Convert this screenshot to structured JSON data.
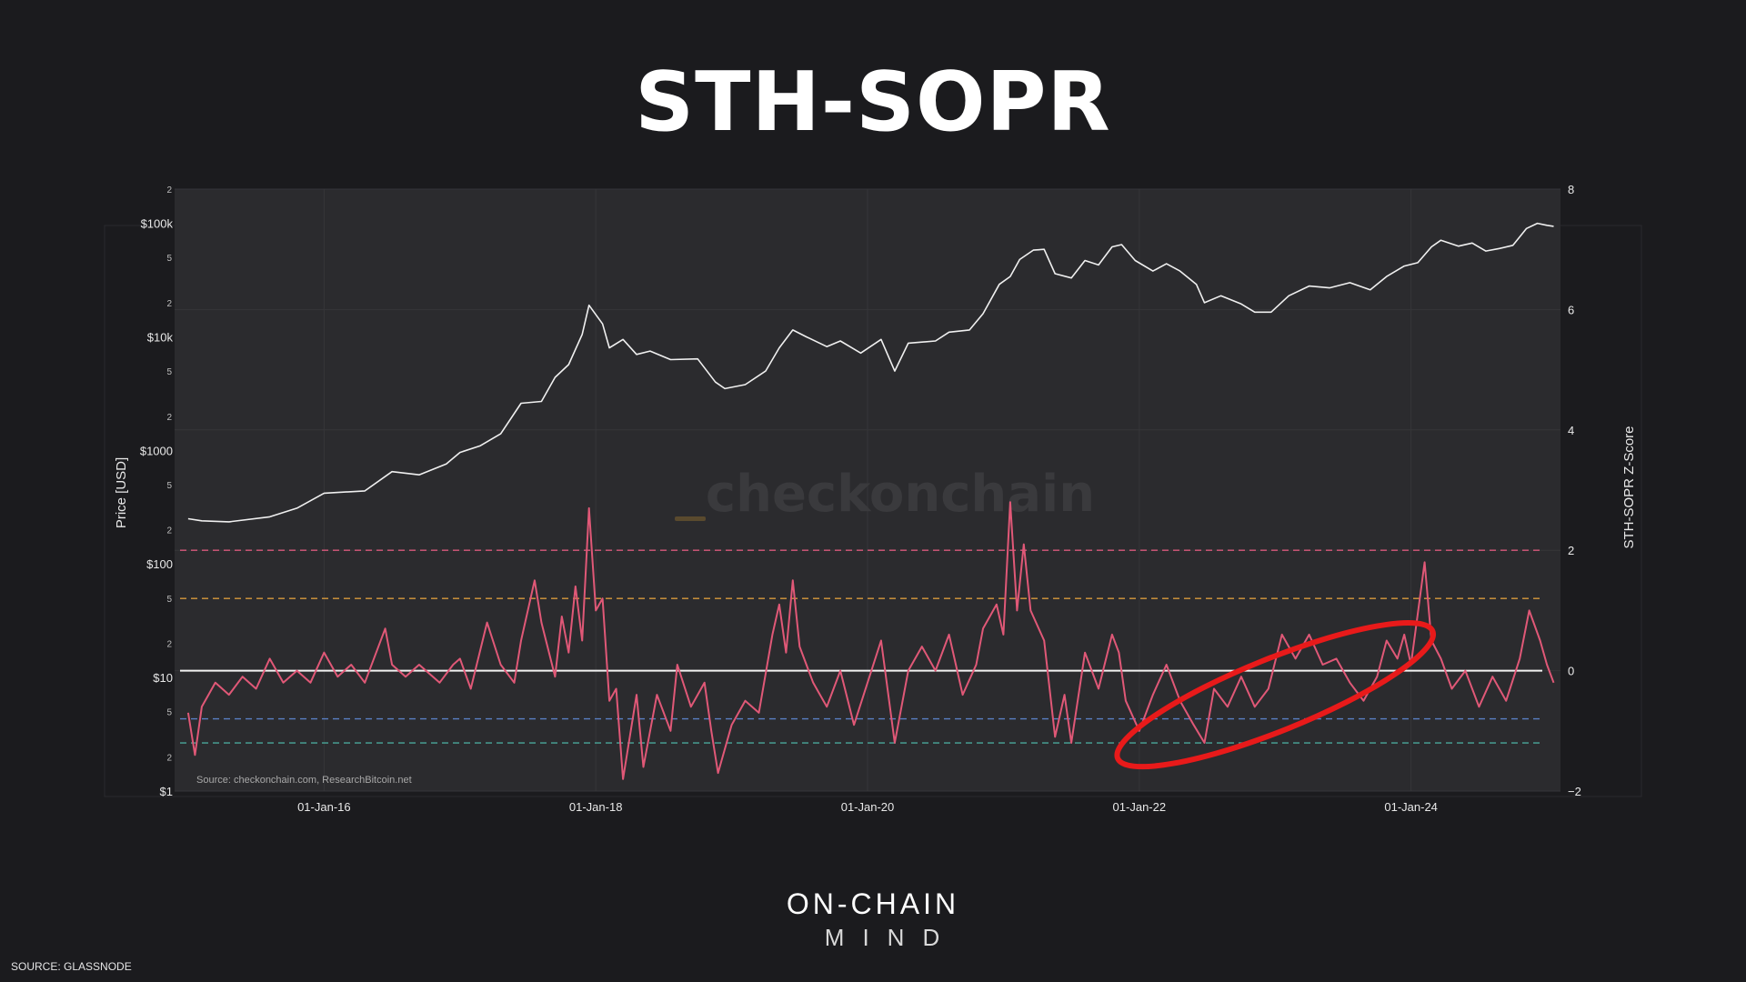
{
  "page": {
    "title": "STH-SOPR",
    "brand_line1": "ON-CHAIN",
    "brand_line2": "MIND",
    "source": "SOURCE: GLASSNODE"
  },
  "chart_data": {
    "type": "line",
    "watermark": "checkonchain",
    "inner_source": "Source: checkonchain.com, ResearchBitcoin.net",
    "left_axis": {
      "label": "Price [USD]",
      "scale": "log",
      "range": [
        1,
        200000
      ],
      "major_ticks": [
        {
          "value": 1,
          "label": "$1"
        },
        {
          "value": 10,
          "label": "$10"
        },
        {
          "value": 100,
          "label": "$100"
        },
        {
          "value": 1000,
          "label": "$1000"
        },
        {
          "value": 10000,
          "label": "$10k"
        },
        {
          "value": 100000,
          "label": "$100k"
        }
      ],
      "minor_ticks": [
        {
          "value": 2,
          "label": "2"
        },
        {
          "value": 5,
          "label": "5"
        },
        {
          "value": 20,
          "label": "2"
        },
        {
          "value": 50,
          "label": "5"
        },
        {
          "value": 200,
          "label": "2"
        },
        {
          "value": 500,
          "label": "5"
        },
        {
          "value": 2000,
          "label": "2"
        },
        {
          "value": 5000,
          "label": "5"
        },
        {
          "value": 20000,
          "label": "2"
        },
        {
          "value": 50000,
          "label": "5"
        },
        {
          "value": 200000,
          "label": "2"
        }
      ]
    },
    "right_axis": {
      "label": "STH-SOPR Z-Score",
      "range": [
        -2,
        8
      ],
      "ticks": [
        {
          "value": -2,
          "label": "−2"
        },
        {
          "value": 0,
          "label": "0"
        },
        {
          "value": 2,
          "label": "2"
        },
        {
          "value": 4,
          "label": "4"
        },
        {
          "value": 6,
          "label": "6"
        },
        {
          "value": 8,
          "label": "8"
        }
      ]
    },
    "x_axis": {
      "range": [
        2014.9,
        2025.1
      ],
      "ticks": [
        {
          "value": 2016,
          "label": "01-Jan-16"
        },
        {
          "value": 2018,
          "label": "01-Jan-18"
        },
        {
          "value": 2020,
          "label": "01-Jan-20"
        },
        {
          "value": 2022,
          "label": "01-Jan-22"
        },
        {
          "value": 2024,
          "label": "01-Jan-24"
        }
      ]
    },
    "reference_lines": [
      {
        "value": 2.0,
        "color": "#d9587c",
        "style": "dashed"
      },
      {
        "value": 1.2,
        "color": "#d89a3c",
        "style": "dashed"
      },
      {
        "value": 0.0,
        "color": "#f2f2f2",
        "style": "solid"
      },
      {
        "value": -0.8,
        "color": "#5a7fc4",
        "style": "dashed"
      },
      {
        "value": -1.2,
        "color": "#4aa89a",
        "style": "dashed"
      }
    ],
    "series": [
      {
        "key": "price",
        "color": "#f0f0f0",
        "axis": "left",
        "points": [
          [
            2015.0,
            250
          ],
          [
            2015.1,
            240
          ],
          [
            2015.3,
            235
          ],
          [
            2015.6,
            260
          ],
          [
            2015.8,
            310
          ],
          [
            2016.0,
            420
          ],
          [
            2016.3,
            440
          ],
          [
            2016.5,
            650
          ],
          [
            2016.7,
            610
          ],
          [
            2016.9,
            760
          ],
          [
            2017.0,
            960
          ],
          [
            2017.15,
            1100
          ],
          [
            2017.3,
            1400
          ],
          [
            2017.45,
            2600
          ],
          [
            2017.6,
            2700
          ],
          [
            2017.7,
            4400
          ],
          [
            2017.8,
            5700
          ],
          [
            2017.9,
            10500
          ],
          [
            2017.95,
            19000
          ],
          [
            2018.05,
            13000
          ],
          [
            2018.1,
            8000
          ],
          [
            2018.2,
            9500
          ],
          [
            2018.3,
            7000
          ],
          [
            2018.4,
            7500
          ],
          [
            2018.55,
            6300
          ],
          [
            2018.75,
            6400
          ],
          [
            2018.88,
            4000
          ],
          [
            2018.95,
            3500
          ],
          [
            2019.1,
            3800
          ],
          [
            2019.25,
            5000
          ],
          [
            2019.35,
            8000
          ],
          [
            2019.45,
            11500
          ],
          [
            2019.55,
            10000
          ],
          [
            2019.7,
            8200
          ],
          [
            2019.8,
            9200
          ],
          [
            2019.95,
            7200
          ],
          [
            2020.1,
            9500
          ],
          [
            2020.2,
            5000
          ],
          [
            2020.3,
            8800
          ],
          [
            2020.5,
            9200
          ],
          [
            2020.6,
            11000
          ],
          [
            2020.75,
            11500
          ],
          [
            2020.85,
            16000
          ],
          [
            2020.97,
            29000
          ],
          [
            2021.05,
            34000
          ],
          [
            2021.12,
            48000
          ],
          [
            2021.22,
            58000
          ],
          [
            2021.3,
            59000
          ],
          [
            2021.38,
            36000
          ],
          [
            2021.5,
            33000
          ],
          [
            2021.6,
            47000
          ],
          [
            2021.7,
            43000
          ],
          [
            2021.8,
            62000
          ],
          [
            2021.87,
            65000
          ],
          [
            2021.97,
            47000
          ],
          [
            2022.1,
            38000
          ],
          [
            2022.2,
            44000
          ],
          [
            2022.3,
            38000
          ],
          [
            2022.42,
            29000
          ],
          [
            2022.48,
            20000
          ],
          [
            2022.6,
            23000
          ],
          [
            2022.75,
            19500
          ],
          [
            2022.85,
            16500
          ],
          [
            2022.97,
            16500
          ],
          [
            2023.1,
            23000
          ],
          [
            2023.25,
            28000
          ],
          [
            2023.4,
            27000
          ],
          [
            2023.55,
            30000
          ],
          [
            2023.7,
            26000
          ],
          [
            2023.82,
            34000
          ],
          [
            2023.95,
            42000
          ],
          [
            2024.05,
            45000
          ],
          [
            2024.15,
            62000
          ],
          [
            2024.22,
            71000
          ],
          [
            2024.35,
            63000
          ],
          [
            2024.45,
            67000
          ],
          [
            2024.55,
            57000
          ],
          [
            2024.65,
            60000
          ],
          [
            2024.75,
            64000
          ],
          [
            2024.85,
            90000
          ],
          [
            2024.93,
            100000
          ],
          [
            2025.0,
            96000
          ],
          [
            2025.05,
            94000
          ]
        ]
      },
      {
        "key": "sth-sopr-zscore",
        "color": "#e05877",
        "axis": "right",
        "points": [
          [
            2015.0,
            -0.7
          ],
          [
            2015.05,
            -1.4
          ],
          [
            2015.1,
            -0.6
          ],
          [
            2015.2,
            -0.2
          ],
          [
            2015.3,
            -0.4
          ],
          [
            2015.4,
            -0.1
          ],
          [
            2015.5,
            -0.3
          ],
          [
            2015.6,
            0.2
          ],
          [
            2015.7,
            -0.2
          ],
          [
            2015.8,
            0.0
          ],
          [
            2015.9,
            -0.2
          ],
          [
            2016.0,
            0.3
          ],
          [
            2016.1,
            -0.1
          ],
          [
            2016.2,
            0.1
          ],
          [
            2016.3,
            -0.2
          ],
          [
            2016.45,
            0.7
          ],
          [
            2016.5,
            0.1
          ],
          [
            2016.6,
            -0.1
          ],
          [
            2016.7,
            0.1
          ],
          [
            2016.85,
            -0.2
          ],
          [
            2016.95,
            0.1
          ],
          [
            2017.0,
            0.2
          ],
          [
            2017.08,
            -0.3
          ],
          [
            2017.2,
            0.8
          ],
          [
            2017.3,
            0.1
          ],
          [
            2017.4,
            -0.2
          ],
          [
            2017.45,
            0.5
          ],
          [
            2017.55,
            1.5
          ],
          [
            2017.6,
            0.8
          ],
          [
            2017.7,
            -0.1
          ],
          [
            2017.75,
            0.9
          ],
          [
            2017.8,
            0.3
          ],
          [
            2017.85,
            1.4
          ],
          [
            2017.9,
            0.5
          ],
          [
            2017.95,
            2.7
          ],
          [
            2018.0,
            1.0
          ],
          [
            2018.05,
            1.2
          ],
          [
            2018.1,
            -0.5
          ],
          [
            2018.15,
            -0.3
          ],
          [
            2018.2,
            -1.8
          ],
          [
            2018.3,
            -0.4
          ],
          [
            2018.35,
            -1.6
          ],
          [
            2018.45,
            -0.4
          ],
          [
            2018.55,
            -1.0
          ],
          [
            2018.6,
            0.1
          ],
          [
            2018.7,
            -0.6
          ],
          [
            2018.8,
            -0.2
          ],
          [
            2018.85,
            -1.0
          ],
          [
            2018.9,
            -1.7
          ],
          [
            2019.0,
            -0.9
          ],
          [
            2019.1,
            -0.5
          ],
          [
            2019.2,
            -0.7
          ],
          [
            2019.3,
            0.6
          ],
          [
            2019.35,
            1.1
          ],
          [
            2019.4,
            0.3
          ],
          [
            2019.45,
            1.5
          ],
          [
            2019.5,
            0.4
          ],
          [
            2019.6,
            -0.2
          ],
          [
            2019.7,
            -0.6
          ],
          [
            2019.8,
            0.0
          ],
          [
            2019.9,
            -0.9
          ],
          [
            2020.0,
            -0.2
          ],
          [
            2020.1,
            0.5
          ],
          [
            2020.2,
            -1.2
          ],
          [
            2020.3,
            0.0
          ],
          [
            2020.4,
            0.4
          ],
          [
            2020.5,
            0.0
          ],
          [
            2020.6,
            0.6
          ],
          [
            2020.7,
            -0.4
          ],
          [
            2020.8,
            0.1
          ],
          [
            2020.85,
            0.7
          ],
          [
            2020.95,
            1.1
          ],
          [
            2021.0,
            0.6
          ],
          [
            2021.05,
            2.8
          ],
          [
            2021.1,
            1.0
          ],
          [
            2021.15,
            2.1
          ],
          [
            2021.2,
            1.0
          ],
          [
            2021.3,
            0.5
          ],
          [
            2021.38,
            -1.1
          ],
          [
            2021.45,
            -0.4
          ],
          [
            2021.5,
            -1.2
          ],
          [
            2021.6,
            0.3
          ],
          [
            2021.7,
            -0.3
          ],
          [
            2021.8,
            0.6
          ],
          [
            2021.85,
            0.3
          ],
          [
            2021.9,
            -0.5
          ],
          [
            2022.0,
            -1.0
          ],
          [
            2022.1,
            -0.4
          ],
          [
            2022.2,
            0.1
          ],
          [
            2022.3,
            -0.5
          ],
          [
            2022.4,
            -0.9
          ],
          [
            2022.48,
            -1.2
          ],
          [
            2022.55,
            -0.3
          ],
          [
            2022.65,
            -0.6
          ],
          [
            2022.75,
            -0.1
          ],
          [
            2022.85,
            -0.6
          ],
          [
            2022.95,
            -0.3
          ],
          [
            2023.05,
            0.6
          ],
          [
            2023.15,
            0.2
          ],
          [
            2023.25,
            0.6
          ],
          [
            2023.35,
            0.1
          ],
          [
            2023.45,
            0.2
          ],
          [
            2023.55,
            -0.2
          ],
          [
            2023.65,
            -0.5
          ],
          [
            2023.75,
            -0.1
          ],
          [
            2023.82,
            0.5
          ],
          [
            2023.9,
            0.2
          ],
          [
            2023.95,
            0.6
          ],
          [
            2024.0,
            0.1
          ],
          [
            2024.1,
            1.8
          ],
          [
            2024.15,
            0.5
          ],
          [
            2024.22,
            0.2
          ],
          [
            2024.3,
            -0.3
          ],
          [
            2024.4,
            0.0
          ],
          [
            2024.5,
            -0.6
          ],
          [
            2024.6,
            -0.1
          ],
          [
            2024.7,
            -0.5
          ],
          [
            2024.8,
            0.2
          ],
          [
            2024.87,
            1.0
          ],
          [
            2024.95,
            0.5
          ],
          [
            2025.0,
            0.1
          ],
          [
            2025.05,
            -0.2
          ]
        ]
      }
    ],
    "highlight": {
      "shape": "ellipse",
      "color": "#e81a1a",
      "center": [
        2023.0,
        -0.4
      ],
      "rx_years": 1.25,
      "ry_z": 0.6,
      "rotation_deg": -22
    }
  }
}
